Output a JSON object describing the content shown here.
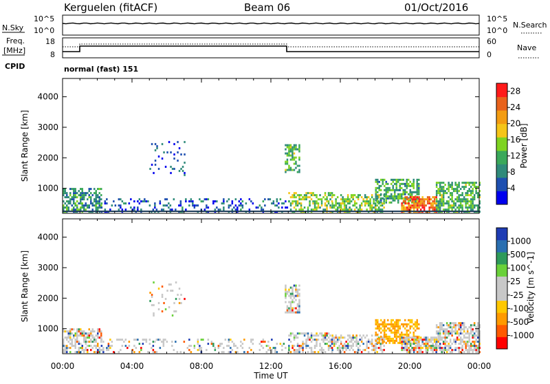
{
  "header": {
    "station": "Kerguelen (fitACF)",
    "beam": "Beam 06",
    "date": "01/Oct/2016"
  },
  "top_panels": {
    "nsky_label": "N.Sky",
    "nsky_ticks": [
      "10^5",
      "10^0"
    ],
    "nsearch_label": "N.Search",
    "nsearch_ticks": [
      "10^5",
      "10^0"
    ],
    "freq_label_1": "Freq.",
    "freq_label_2": "[MHz]",
    "freq_ticks": [
      "18",
      "8"
    ],
    "nave_label": "Nave",
    "nave_ticks": [
      "60",
      "0"
    ],
    "cpid_label": "CPID",
    "cpid_text": "normal (fast) 151"
  },
  "colors": {
    "power_scale": [
      "#0000ee",
      "#1e4fb0",
      "#2f8a7a",
      "#3aa85a",
      "#7ed321",
      "#f5c518",
      "#f39c12",
      "#e8621c",
      "#ff1a1a"
    ],
    "velocity_scale": [
      "#ff0000",
      "#ff5a00",
      "#ff9a00",
      "#ffc800",
      "#c8c8c8",
      "#c8c8c8",
      "#6ad13a",
      "#2e9a5a",
      "#2a6fb0",
      "#1e3cb4"
    ],
    "ground": "#c8c8c8"
  },
  "chart_data": [
    {
      "type": "heatmap",
      "title": "Power",
      "xlabel": "",
      "ylabel": "Slant Range [km]",
      "x_ticks": [
        "00:00",
        "04:00",
        "08:00",
        "12:00",
        "16:00",
        "20:00",
        "00:00"
      ],
      "xlim_hours": [
        0,
        24
      ],
      "y_ticks": [
        1000,
        2000,
        3000,
        4000
      ],
      "ylim": [
        180,
        4600
      ],
      "colorbar_label": "Power [dB]",
      "colorbar_ticks": [
        "4",
        "8",
        "12",
        "16",
        "20",
        "24",
        "28"
      ],
      "colorbar_range": [
        0,
        30
      ]
    },
    {
      "type": "heatmap",
      "title": "Velocity",
      "xlabel": "Time UT",
      "ylabel": "Slant Range [km]",
      "x_ticks": [
        "00:00",
        "04:00",
        "08:00",
        "12:00",
        "16:00",
        "20:00",
        "00:00"
      ],
      "xlim_hours": [
        0,
        24
      ],
      "y_ticks": [
        1000,
        2000,
        3000,
        4000
      ],
      "ylim": [
        180,
        4600
      ],
      "colorbar_label": "Velocity [m s^-1]",
      "colorbar_ticks": [
        "1000",
        "500",
        "100",
        "25",
        "-25",
        "-100",
        "-500",
        "-1000"
      ]
    }
  ],
  "scatter_regions": [
    {
      "t0": 0.0,
      "t1": 2.2,
      "r0": 200,
      "r1": 950,
      "v": 10,
      "d": 0.55
    },
    {
      "t0": 2.2,
      "t1": 13.0,
      "r0": 200,
      "r1": 650,
      "v": 6,
      "d": 0.22
    },
    {
      "t0": 5.0,
      "t1": 7.0,
      "r0": 1400,
      "r1": 2500,
      "v": 5,
      "d": 0.08
    },
    {
      "t0": 12.8,
      "t1": 13.6,
      "r0": 1500,
      "r1": 2400,
      "v": 12,
      "d": 0.55
    },
    {
      "t0": 13.0,
      "t1": 15.5,
      "r0": 200,
      "r1": 850,
      "v": 14,
      "d": 0.5
    },
    {
      "t0": 15.5,
      "t1": 18.5,
      "r0": 200,
      "r1": 800,
      "v": 14,
      "d": 0.55
    },
    {
      "t0": 18.0,
      "t1": 20.5,
      "r0": 500,
      "r1": 1250,
      "v": 11,
      "d": 0.6
    },
    {
      "t0": 19.5,
      "t1": 21.5,
      "r0": 200,
      "r1": 700,
      "v": 24,
      "d": 0.75
    },
    {
      "t0": 21.5,
      "t1": 24.0,
      "r0": 200,
      "r1": 1200,
      "v": 12,
      "d": 0.6
    }
  ]
}
